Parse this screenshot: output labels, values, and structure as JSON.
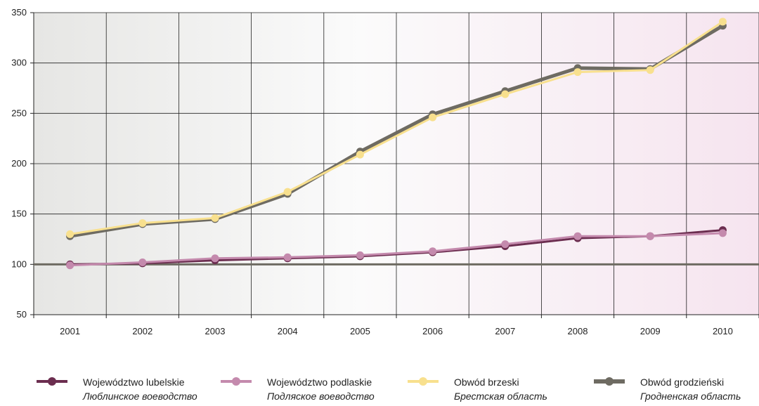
{
  "chart_data": {
    "type": "line",
    "title": "",
    "xlabel": "",
    "ylabel": "",
    "categories": [
      "2001",
      "2002",
      "2003",
      "2004",
      "2005",
      "2006",
      "2007",
      "2008",
      "2009",
      "2010"
    ],
    "ylim": [
      50,
      350
    ],
    "yticks": [
      50,
      100,
      150,
      200,
      250,
      300,
      350
    ],
    "reference_line": 100,
    "grid": true,
    "legend_position": "bottom",
    "series": [
      {
        "name": "Województwo lubelskie",
        "subname": "Люблинское воеводство",
        "color": "#6b2d4f",
        "values": [
          100,
          101,
          104,
          106,
          108,
          112,
          118,
          126,
          128,
          134
        ]
      },
      {
        "name": "Województwo podlaskie",
        "subname": "Подляское воеводство",
        "color": "#c48aad",
        "values": [
          99,
          102,
          106,
          107,
          109,
          113,
          120,
          128,
          128,
          131
        ]
      },
      {
        "name": "Obwód grodzieński",
        "subname": "Гродненская область",
        "color": "#6e6b62",
        "values": [
          128,
          140,
          145,
          170,
          212,
          249,
          272,
          295,
          294,
          337
        ]
      },
      {
        "name": "Obwód brzeski",
        "subname": "Брестская область",
        "color": "#f8e08e",
        "values": [
          130,
          141,
          146,
          172,
          209,
          246,
          269,
          291,
          293,
          341
        ]
      }
    ],
    "legend_order": [
      0,
      1,
      3,
      2
    ]
  }
}
